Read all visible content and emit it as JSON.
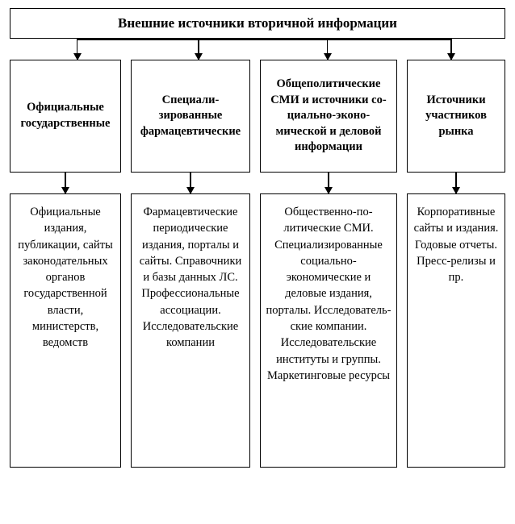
{
  "type": "tree",
  "background_color": "#ffffff",
  "border_color": "#000000",
  "border_width": 1.5,
  "font_family": "Georgia, Times New Roman, serif",
  "title_fontsize": 17,
  "category_fontsize": 14.5,
  "detail_fontsize": 14.5,
  "root": {
    "label": "Внешние источники вторичной информации"
  },
  "columns": [
    {
      "category": "Официаль­ные государ­ственные",
      "detail": "Официаль­ные издания, публикации, сайты за­конодатель­ных органов государствен­ной власти, министерств, ведомств"
    },
    {
      "category": "Специали­зированные фармацевти­ческие",
      "detail": "Фармацев­тические периодиче­ские издания, порталы и сайты. Справочники и базы дан­ных ЛС. Професси­ональные ассоциации. Исследова­тельские компании"
    },
    {
      "category": "Общеполити­ческие СМИ и источники со­циально-эконо­мической и дело­вой информации",
      "detail": "Общественно-по­литические СМИ. Специализирован­ные социально-экономические и деловые изда­ния, порталы. Исследователь­ские компании. Исследователь­ские институты и группы. Маркетинговые ресурсы"
    },
    {
      "category": "Источни­ки участ­ников рынка",
      "detail": "Корпора­тивные сайты и издания. Годовые отчеты. Пресс-релизы и пр."
    }
  ],
  "arrow_positions_pct": [
    13.5,
    38,
    64,
    89
  ],
  "hline_left_pct": 13.5,
  "hline_right_pct": 89
}
